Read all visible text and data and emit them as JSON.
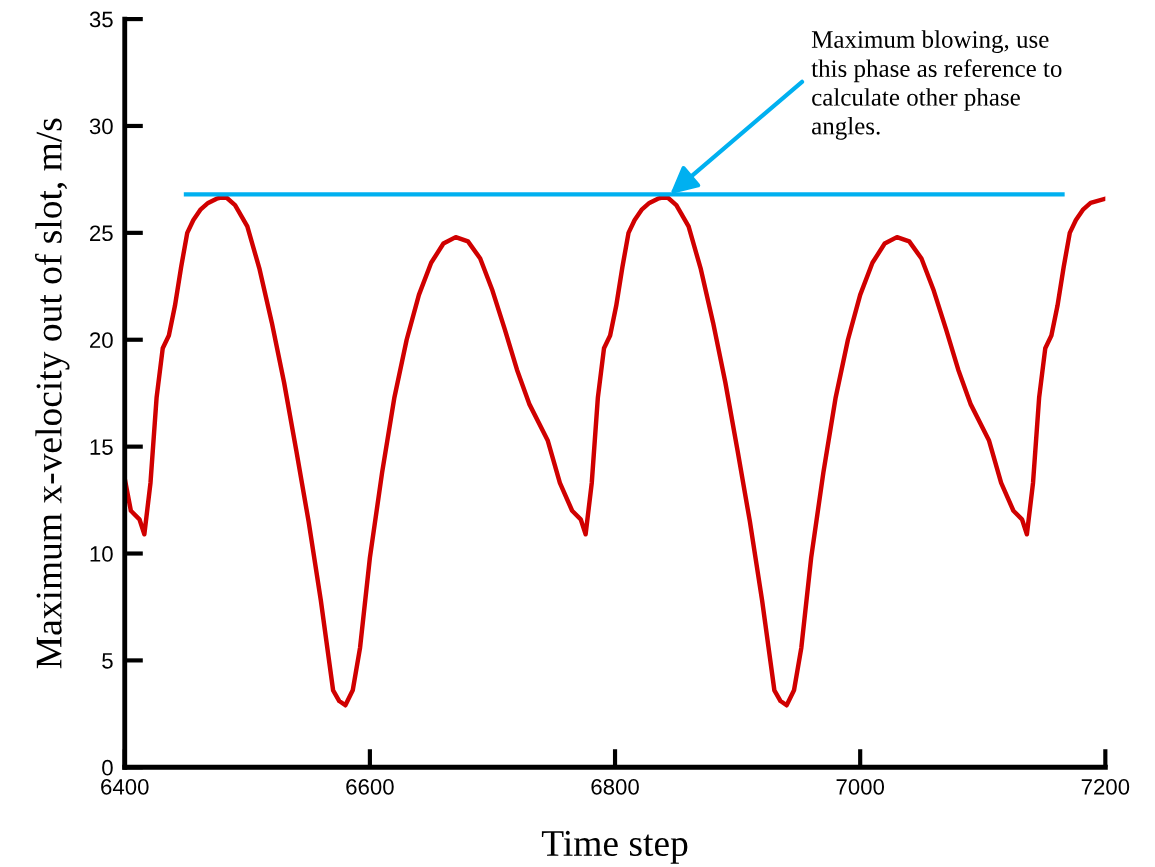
{
  "chart_data": {
    "type": "line",
    "xlabel": "Time step",
    "ylabel": "Maximum x-velocity out of slot, m/s",
    "xlim": [
      6400,
      7200
    ],
    "xticks": [
      6400,
      6600,
      6800,
      7000,
      7200
    ],
    "ylim": [
      0,
      35
    ],
    "yticks": [
      0,
      5,
      10,
      15,
      20,
      25,
      30,
      35
    ],
    "grid": false,
    "legend": false,
    "marker": "none",
    "line_style": "solid",
    "series": [
      {
        "color": "#d00000",
        "x": [
          6400,
          6405,
          6412,
          6416,
          6421,
          6426,
          6431,
          6436,
          6441,
          6446,
          6451,
          6456,
          6462,
          6468,
          6475,
          6482,
          6490,
          6500,
          6510,
          6520,
          6530,
          6540,
          6550,
          6560,
          6570,
          6575,
          6580,
          6586,
          6592,
          6600,
          6610,
          6620,
          6630,
          6640,
          6650,
          6660,
          6670,
          6680,
          6690,
          6700,
          6710,
          6720,
          6730,
          6745,
          6755,
          6765,
          6772,
          6776,
          6781,
          6786,
          6791,
          6796,
          6801,
          6806,
          6811,
          6816,
          6822,
          6828,
          6835,
          6842,
          6850,
          6860,
          6870,
          6880,
          6890,
          6900,
          6910,
          6920,
          6930,
          6935,
          6940,
          6946,
          6952,
          6960,
          6970,
          6980,
          6990,
          7000,
          7010,
          7020,
          7030,
          7040,
          7050,
          7060,
          7070,
          7080,
          7090,
          7105,
          7115,
          7125,
          7132,
          7136,
          7141,
          7146,
          7151,
          7156,
          7161,
          7166,
          7171,
          7176,
          7182,
          7188,
          7200
        ],
        "values": [
          13.5,
          12.0,
          11.6,
          10.9,
          13.3,
          17.3,
          19.6,
          20.2,
          21.6,
          23.4,
          25.0,
          25.6,
          26.1,
          26.4,
          26.6,
          26.7,
          26.3,
          25.3,
          23.3,
          20.8,
          18.0,
          14.8,
          11.5,
          7.8,
          3.6,
          3.1,
          2.9,
          3.6,
          5.6,
          9.8,
          13.8,
          17.3,
          20.0,
          22.1,
          23.6,
          24.5,
          24.8,
          24.6,
          23.8,
          22.3,
          20.5,
          18.6,
          17.0,
          15.3,
          13.3,
          12.0,
          11.6,
          10.9,
          13.3,
          17.3,
          19.6,
          20.2,
          21.6,
          23.4,
          25.0,
          25.6,
          26.1,
          26.4,
          26.6,
          26.7,
          26.3,
          25.3,
          23.3,
          20.8,
          18.0,
          14.8,
          11.5,
          7.8,
          3.6,
          3.1,
          2.9,
          3.6,
          5.6,
          9.8,
          13.8,
          17.3,
          20.0,
          22.1,
          23.6,
          24.5,
          24.8,
          24.6,
          23.8,
          22.3,
          20.5,
          18.6,
          17.0,
          15.3,
          13.3,
          12.0,
          11.6,
          10.9,
          13.3,
          17.3,
          19.6,
          20.2,
          21.6,
          23.4,
          25.0,
          25.6,
          26.1,
          26.4,
          26.6
        ]
      },
      {
        "color": "#00b0f0",
        "x": [
          6450,
          7165
        ],
        "values": [
          26.8,
          26.8
        ]
      }
    ],
    "annotations": [
      {
        "text": "Maximum blowing, use\nthis phase as reference to\ncalculate other phase\nangles.",
        "x": 6845,
        "y": 26.8
      }
    ]
  }
}
